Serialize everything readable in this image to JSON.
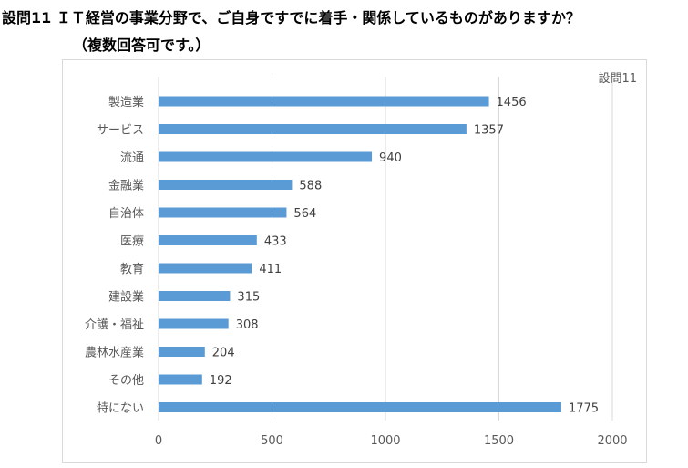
{
  "header": {
    "question": "設問11 ＩＴ経営の事業分野で、ご自身ですでに着手・関係しているものがありますか？",
    "question_note": "（複数回答可です。）"
  },
  "chart_data": {
    "type": "bar",
    "orientation": "horizontal",
    "title": "設問11",
    "categories": [
      "製造業",
      "サービス",
      "流通",
      "金融業",
      "自治体",
      "医療",
      "教育",
      "建設業",
      "介護・福祉",
      "農林水産業",
      "その他",
      "特にない"
    ],
    "values": [
      1456,
      1357,
      940,
      588,
      564,
      433,
      411,
      315,
      308,
      204,
      192,
      1775
    ],
    "xlim": [
      0,
      2000
    ],
    "xticks": [
      0,
      500,
      1000,
      1500,
      2000
    ],
    "xlabel": "",
    "ylabel": "",
    "grid": true,
    "bar_color": "#5b9bd5",
    "data_labels": true
  }
}
